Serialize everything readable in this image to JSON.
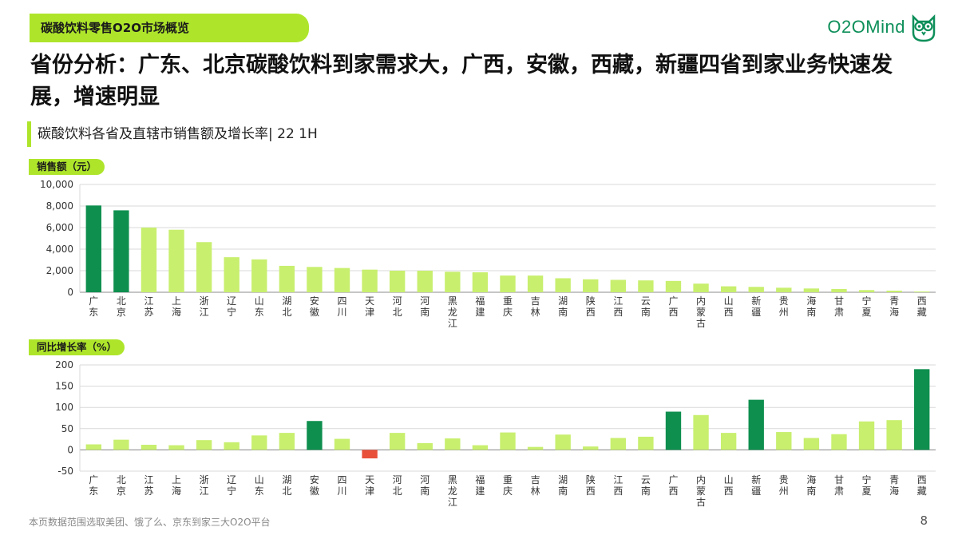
{
  "header": {
    "section_tag": "碳酸饮料零售O2O市场概览",
    "brand": "O2OMind",
    "headline": "省份分析：广东、北京碳酸饮料到家需求大，广西，安徽，西藏，新疆四省到家业务快速发展，增速明显",
    "subtitle": "碳酸饮料各省及直辖市销售额及增长率| 22 1H"
  },
  "footer": {
    "note": "本页数据范围选取美团、饿了么、京东到家三大O2O平台",
    "page_number": "8"
  },
  "colors": {
    "accent_light": "#c8ef6e",
    "accent_dark": "#0e8f4e",
    "negative": "#e8503a",
    "pill": "#aee52b"
  },
  "chart_data": [
    {
      "type": "bar",
      "ylabel": "销售额（元）",
      "ylim": [
        0,
        10000
      ],
      "yticks": [
        "10,000",
        "8,000",
        "6,000",
        "4,000",
        "2,000",
        "0"
      ],
      "categories": [
        "广东",
        "北京",
        "江苏",
        "上海",
        "浙江",
        "辽宁",
        "山东",
        "湖北",
        "安徽",
        "四川",
        "天津",
        "河北",
        "河南",
        "黑龙江",
        "福建",
        "重庆",
        "吉林",
        "湖南",
        "陕西",
        "江西",
        "云南",
        "广西",
        "内蒙古",
        "山西",
        "新疆",
        "贵州",
        "海南",
        "甘肃",
        "宁夏",
        "青海",
        "西藏"
      ],
      "values": [
        8050,
        7600,
        6000,
        5800,
        4650,
        3250,
        3050,
        2450,
        2350,
        2250,
        2100,
        2000,
        2000,
        1900,
        1850,
        1550,
        1550,
        1300,
        1200,
        1150,
        1100,
        1050,
        800,
        550,
        500,
        420,
        350,
        300,
        200,
        150,
        70
      ],
      "highlight": [
        "广东",
        "北京"
      ],
      "grid": true
    },
    {
      "type": "bar",
      "ylabel": "同比增长率（%）",
      "ylim": [
        -50,
        200
      ],
      "yticks": [
        "200",
        "150",
        "100",
        "50",
        "0",
        "-50"
      ],
      "categories": [
        "广东",
        "北京",
        "江苏",
        "上海",
        "浙江",
        "辽宁",
        "山东",
        "湖北",
        "安徽",
        "四川",
        "天津",
        "河北",
        "河南",
        "黑龙江",
        "福建",
        "重庆",
        "吉林",
        "湖南",
        "陕西",
        "江西",
        "云南",
        "广西",
        "内蒙古",
        "山西",
        "新疆",
        "贵州",
        "海南",
        "甘肃",
        "宁夏",
        "青海",
        "西藏"
      ],
      "values": [
        13,
        24,
        12,
        11,
        23,
        18,
        34,
        40,
        68,
        26,
        -20,
        40,
        16,
        27,
        11,
        41,
        7,
        36,
        8,
        28,
        31,
        90,
        82,
        40,
        118,
        42,
        28,
        37,
        67,
        70,
        190
      ],
      "highlight": [
        "安徽",
        "广西",
        "新疆",
        "西藏"
      ],
      "grid": true
    }
  ]
}
